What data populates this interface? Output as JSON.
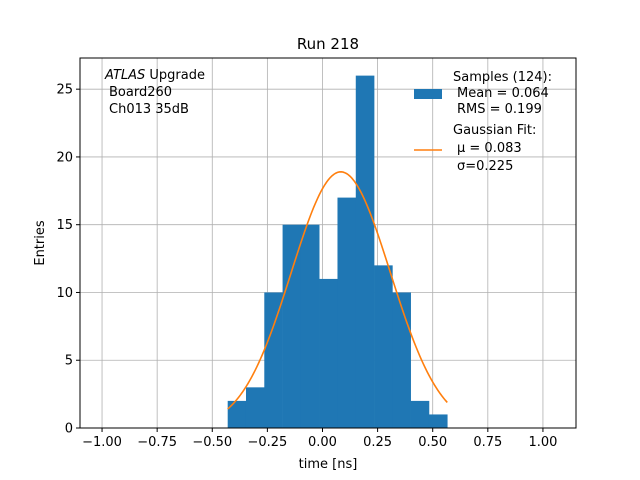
{
  "chart_data": {
    "type": "bar",
    "title": "Run 218",
    "xlabel": "time [ns]",
    "ylabel": "Entries",
    "xlim": [
      -1.1,
      1.15
    ],
    "ylim": [
      0,
      27.3
    ],
    "xticks": [
      -1.0,
      -0.75,
      -0.5,
      -0.25,
      0.0,
      0.25,
      0.5,
      0.75,
      1.0
    ],
    "xtick_labels": [
      "−1.00",
      "−0.75",
      "−0.50",
      "−0.25",
      "0.00",
      "0.25",
      "0.50",
      "0.75",
      "1.00"
    ],
    "yticks": [
      0,
      5,
      10,
      15,
      20,
      25
    ],
    "ytick_labels": [
      "0",
      "5",
      "10",
      "15",
      "20",
      "25"
    ],
    "grid": true,
    "histogram": {
      "name": "Samples (124):",
      "color": "#1f77b4",
      "bin_edges": [
        -0.43,
        -0.347,
        -0.264,
        -0.181,
        -0.098,
        -0.015,
        0.068,
        0.151,
        0.234,
        0.317,
        0.4,
        0.483,
        0.566
      ],
      "counts": [
        2,
        3,
        10,
        15,
        15,
        11,
        17,
        26,
        12,
        10,
        2,
        1
      ]
    },
    "fit": {
      "name": "Gaussian Fit:",
      "color": "#ff7f0e",
      "mu": 0.083,
      "sigma": 0.225,
      "amplitude": 18.9,
      "x_range": [
        -0.43,
        0.566
      ]
    },
    "legend_position": "top-right",
    "legend": {
      "samples_title": "Samples (124):",
      "samples_mean": "Mean = 0.064",
      "samples_rms": "RMS = 0.199",
      "fit_title": "Gaussian Fit:",
      "fit_mu": "μ = 0.083",
      "fit_sigma": "σ=0.225"
    },
    "annotation": {
      "line1_italic": "ATLAS",
      "line1_rest": " Upgrade",
      "line2": "Board260",
      "line3": "Ch013 35dB"
    }
  }
}
